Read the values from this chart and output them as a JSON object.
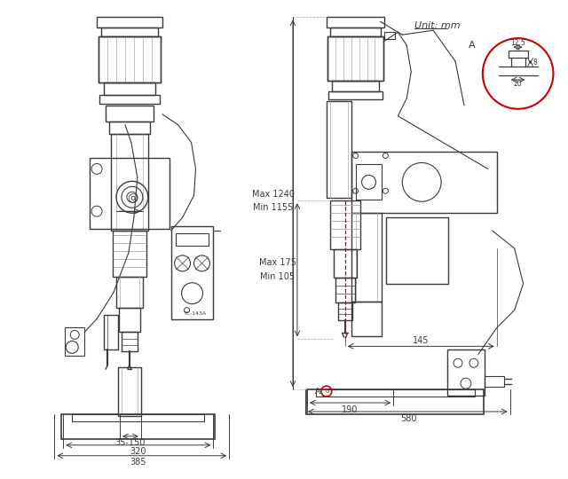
{
  "bg_color": "#ffffff",
  "lc": "#3a3a3a",
  "rc": "#cc0000",
  "unit_text": "Unit: mm",
  "dim_left": {
    "w1": "35-150",
    "w2": "320",
    "w3": "385"
  },
  "dim_right": {
    "h1": "Max 1240",
    "h2": "Min 1155",
    "h3": "Max 175",
    "h4": "Min 105",
    "w1": "145",
    "w2": "190",
    "w3": "580"
  },
  "detail": {
    "w1": "12.5",
    "w2": "20",
    "h1": "8",
    "label": "A"
  }
}
